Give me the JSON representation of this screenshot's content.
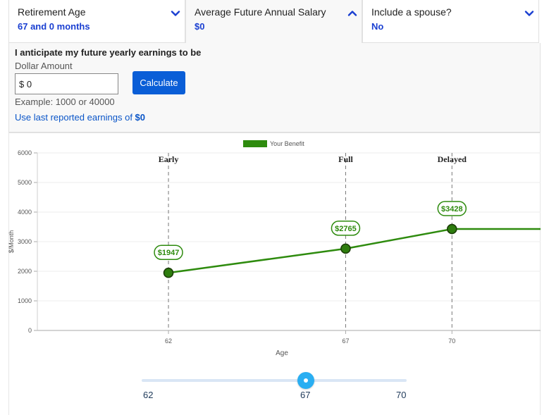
{
  "tabs": [
    {
      "label": "Retirement Age",
      "value": "67 and 0 months"
    },
    {
      "label": "Average Future Annual Salary",
      "value": "$0"
    },
    {
      "label": "Include a spouse?",
      "value": "No"
    }
  ],
  "panel": {
    "title": "I anticipate my future yearly earnings to be",
    "dollar_label": "Dollar Amount",
    "input_value": "$ 0",
    "calculate_label": "Calculate",
    "example": "Example: 1000 or 40000",
    "last_earnings_text": "Use last reported earnings of ",
    "last_earnings_amount": "$0"
  },
  "chart_data": {
    "type": "line",
    "legend": "Your Benefit",
    "xlabel": "Age",
    "ylabel": "$/Month",
    "ylim": [
      0,
      6000
    ],
    "yticks": [
      0,
      1000,
      2000,
      3000,
      4000,
      5000,
      6000
    ],
    "xticks": [
      62,
      67,
      70
    ],
    "xlim": [
      58.3,
      72.5
    ],
    "markers": [
      {
        "label": "Early",
        "age": 62
      },
      {
        "label": "Full",
        "age": 67
      },
      {
        "label": "Delayed",
        "age": 70
      }
    ],
    "series": [
      {
        "name": "Your Benefit",
        "x": [
          62,
          67,
          70,
          72.5
        ],
        "values": [
          1947,
          2765,
          3428,
          3428
        ]
      }
    ],
    "points": [
      {
        "x": 62,
        "value": 1947,
        "label": "$1947"
      },
      {
        "x": 67,
        "value": 2765,
        "label": "$2765"
      },
      {
        "x": 70,
        "value": 3428,
        "label": "$3428"
      }
    ],
    "color": "#2e8b0e"
  },
  "slider": {
    "min": 62,
    "max": 70,
    "value": 67,
    "labels": [
      "62",
      "67",
      "70"
    ]
  }
}
